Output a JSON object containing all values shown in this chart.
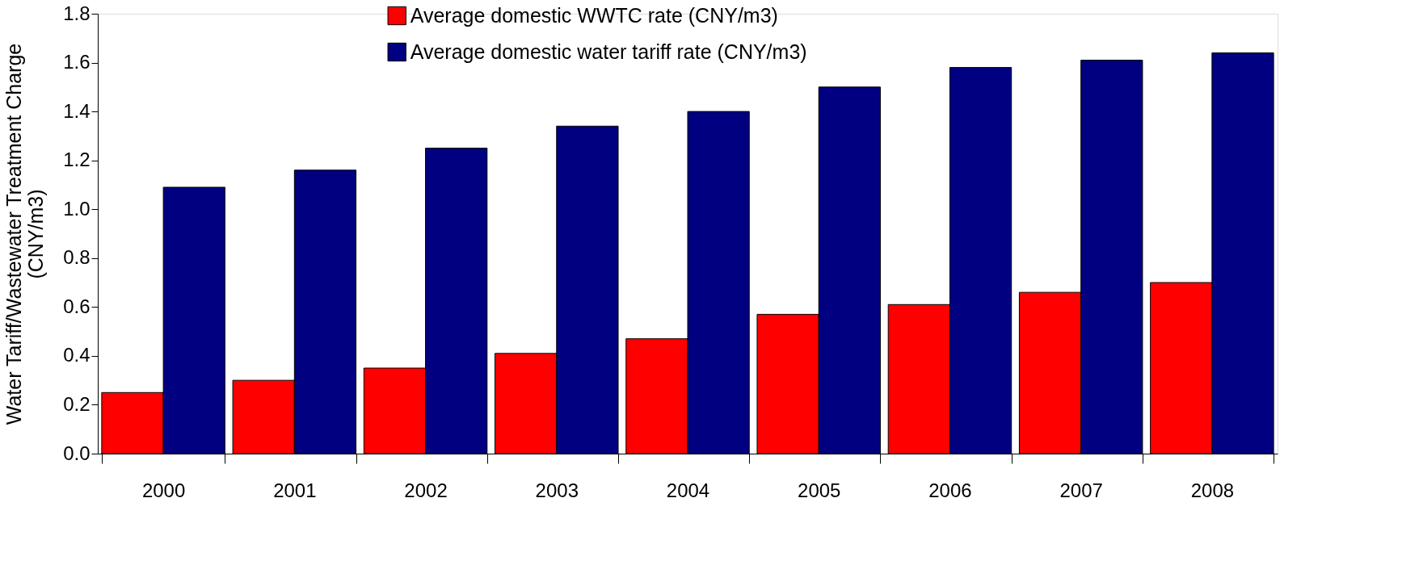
{
  "chart_data": {
    "type": "bar",
    "ylabel": "Water Tariff/Wastewater Treatment Charge\n(CNY/m3)",
    "categories": [
      "2000",
      "2001",
      "2002",
      "2003",
      "2004",
      "2005",
      "2006",
      "2007",
      "2008"
    ],
    "series": [
      {
        "name": "Average domestic WWTC rate (CNY/m3)",
        "color": "#ff0000",
        "values": [
          0.25,
          0.3,
          0.35,
          0.41,
          0.47,
          0.57,
          0.61,
          0.66,
          0.7
        ]
      },
      {
        "name": "Average domestic water tariff rate (CNY/m3)",
        "color": "#000080",
        "values": [
          1.09,
          1.16,
          1.25,
          1.34,
          1.4,
          1.5,
          1.58,
          1.61,
          1.64
        ]
      }
    ],
    "ylim": [
      0,
      1.8
    ],
    "yticks": [
      {
        "value": 0,
        "label": "0.0"
      },
      {
        "value": 0.2,
        "label": "0.2"
      },
      {
        "value": 0.4,
        "label": "0.4"
      },
      {
        "value": 0.6,
        "label": "0.6"
      },
      {
        "value": 0.8,
        "label": "0.8"
      },
      {
        "value": 1.0,
        "label": "1.0"
      },
      {
        "value": 1.2,
        "label": "1.2"
      },
      {
        "value": 1.4,
        "label": "1.4"
      },
      {
        "value": 1.6,
        "label": "1.6"
      },
      {
        "value": 1.8,
        "label": "1.8"
      }
    ],
    "grid": false,
    "legend": "top"
  }
}
